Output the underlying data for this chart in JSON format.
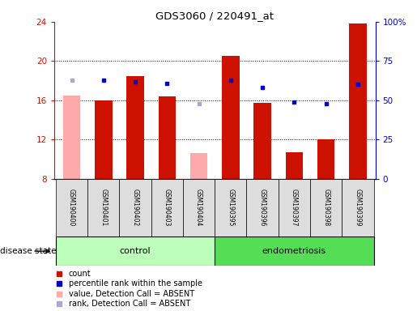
{
  "title": "GDS3060 / 220491_at",
  "samples": [
    "GSM190400",
    "GSM190401",
    "GSM190402",
    "GSM190403",
    "GSM190404",
    "GSM190395",
    "GSM190396",
    "GSM190397",
    "GSM190398",
    "GSM190399"
  ],
  "n_control": 5,
  "n_endo": 5,
  "count_values": [
    16.5,
    16.0,
    18.5,
    16.4,
    10.6,
    20.5,
    15.7,
    10.7,
    12.0,
    23.8
  ],
  "rank_values": [
    63,
    63,
    62,
    61,
    48,
    63,
    58,
    49,
    48,
    60
  ],
  "absent_mask": [
    true,
    false,
    false,
    false,
    true,
    false,
    false,
    false,
    false,
    false
  ],
  "ylim_left": [
    8,
    24
  ],
  "ylim_right": [
    0,
    100
  ],
  "yticks_left": [
    8,
    12,
    16,
    20,
    24
  ],
  "yticks_right": [
    0,
    25,
    50,
    75,
    100
  ],
  "bar_color_present": "#cc1100",
  "bar_color_absent": "#ffaaaa",
  "rank_color_present": "#0000cc",
  "rank_color_absent": "#aaaacc",
  "control_bg": "#bbffbb",
  "endo_bg": "#55dd55",
  "group_label_control": "control",
  "group_label_endo": "endometriosis",
  "disease_state_label": "disease state",
  "legend_items": [
    {
      "label": "count",
      "color": "#cc1100"
    },
    {
      "label": "percentile rank within the sample",
      "color": "#0000cc"
    },
    {
      "label": "value, Detection Call = ABSENT",
      "color": "#ffaaaa"
    },
    {
      "label": "rank, Detection Call = ABSENT",
      "color": "#aaaacc"
    }
  ]
}
